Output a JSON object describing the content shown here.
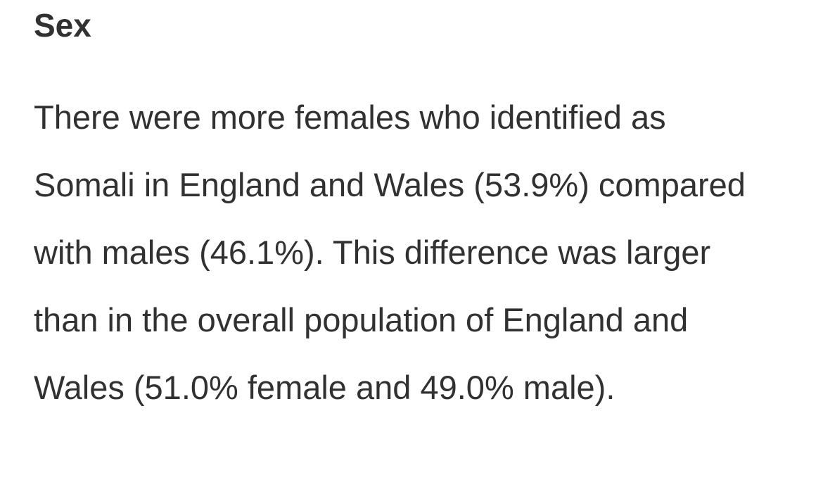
{
  "heading": "Sex",
  "paragraph": {
    "lines": [
      "There were more females who identified as",
      "Somali in England and Wales (53.9%) compared",
      "with males (46.1%). This difference was larger",
      "than in the overall population of England and",
      "Wales (51.0% female and 49.0% male)."
    ]
  }
}
